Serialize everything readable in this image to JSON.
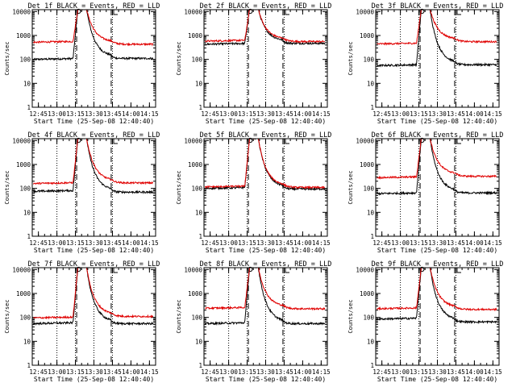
{
  "colors": {
    "events": "#000000",
    "lld": "#e00000",
    "axes": "#000000",
    "background": "#ffffff"
  },
  "chart_data": [
    {
      "type": "line",
      "title": "Det 1f BLACK = Events, RED = LLD",
      "xlabel": "Start Time (25-Sep-08 12:40:40)",
      "ylabel": "Counts/sec",
      "xlim": [
        "12:40",
        "14:20"
      ],
      "ylim": [
        1,
        12000
      ],
      "yscale": "log",
      "xticks": [
        "12:45",
        "13:00",
        "13:15",
        "13:30",
        "13:45",
        "14:00",
        "14:15"
      ],
      "yticks": [
        "1",
        "10",
        "100",
        "1000",
        "10000"
      ],
      "dotted_lines": [
        "13:00",
        "13:15",
        "13:30",
        "13:45"
      ],
      "dashed_lines": [
        "13:16",
        "13:44"
      ],
      "series": [
        {
          "name": "Events",
          "color": "#000000",
          "baseline_before": 100,
          "peak": 10000,
          "baseline_after": 110
        },
        {
          "name": "LLD",
          "color": "#e00000",
          "baseline_before": 520,
          "peak": 10000,
          "baseline_after": 430
        }
      ]
    },
    {
      "type": "line",
      "title": "Det 2f BLACK = Events, RED = LLD",
      "xlabel": "Start Time (25-Sep-08 12:40:40)",
      "ylabel": "Counts/sec",
      "xlim": [
        "12:40",
        "14:20"
      ],
      "ylim": [
        1,
        12000
      ],
      "yscale": "log",
      "xticks": [
        "12:45",
        "13:00",
        "13:15",
        "13:30",
        "13:45",
        "14:00",
        "14:15"
      ],
      "yticks": [
        "1",
        "10",
        "100",
        "1000",
        "10000"
      ],
      "dotted_lines": [
        "13:00",
        "13:15",
        "13:30",
        "13:45"
      ],
      "dashed_lines": [
        "13:16",
        "13:44"
      ],
      "series": [
        {
          "name": "Events",
          "color": "#000000",
          "baseline_before": 430,
          "peak": 10000,
          "baseline_after": 470
        },
        {
          "name": "LLD",
          "color": "#e00000",
          "baseline_before": 580,
          "peak": 10000,
          "baseline_after": 560
        }
      ]
    },
    {
      "type": "line",
      "title": "Det 3f BLACK = Events, RED = LLD",
      "xlabel": "Start Time (25-Sep-08 12:40:40)",
      "ylabel": "Counts/sec",
      "xlim": [
        "12:40",
        "14:20"
      ],
      "ylim": [
        1,
        12000
      ],
      "yscale": "log",
      "xticks": [
        "12:45",
        "13:00",
        "13:15",
        "13:30",
        "13:45",
        "14:00",
        "14:15"
      ],
      "yticks": [
        "1",
        "10",
        "100",
        "1000",
        "10000"
      ],
      "dotted_lines": [
        "13:00",
        "13:15",
        "13:30",
        "13:45"
      ],
      "dashed_lines": [
        "13:16",
        "13:44"
      ],
      "series": [
        {
          "name": "Events",
          "color": "#000000",
          "baseline_before": 55,
          "peak": 10000,
          "baseline_after": 60
        },
        {
          "name": "LLD",
          "color": "#e00000",
          "baseline_before": 440,
          "peak": 10000,
          "baseline_after": 550
        }
      ]
    },
    {
      "type": "line",
      "title": "Det 4f BLACK = Events, RED = LLD",
      "xlabel": "Start Time (25-Sep-08 12:40:40)",
      "ylabel": "Counts/sec",
      "xlim": [
        "12:40",
        "14:20"
      ],
      "ylim": [
        1,
        12000
      ],
      "yscale": "log",
      "xticks": [
        "12:45",
        "13:00",
        "13:15",
        "13:30",
        "13:45",
        "14:00",
        "14:15"
      ],
      "yticks": [
        "1",
        "10",
        "100",
        "1000",
        "10000"
      ],
      "dotted_lines": [
        "13:00",
        "13:15",
        "13:30",
        "13:45"
      ],
      "dashed_lines": [
        "13:16",
        "13:44"
      ],
      "series": [
        {
          "name": "Events",
          "color": "#000000",
          "baseline_before": 75,
          "peak": 10000,
          "baseline_after": 70
        },
        {
          "name": "LLD",
          "color": "#e00000",
          "baseline_before": 160,
          "peak": 10000,
          "baseline_after": 170
        }
      ]
    },
    {
      "type": "line",
      "title": "Det 5f BLACK = Events, RED = LLD",
      "xlabel": "Start Time (25-Sep-08 12:40:40)",
      "ylabel": "Counts/sec",
      "xlim": [
        "12:40",
        "14:20"
      ],
      "ylim": [
        1,
        12000
      ],
      "yscale": "log",
      "xticks": [
        "12:45",
        "13:00",
        "13:15",
        "13:30",
        "13:45",
        "14:00",
        "14:15"
      ],
      "yticks": [
        "1",
        "10",
        "100",
        "1000",
        "10000"
      ],
      "dotted_lines": [
        "13:00",
        "13:15",
        "13:30",
        "13:45"
      ],
      "dashed_lines": [
        "13:16",
        "13:44"
      ],
      "series": [
        {
          "name": "Events",
          "color": "#000000",
          "baseline_before": 100,
          "peak": 10000,
          "baseline_after": 95
        },
        {
          "name": "LLD",
          "color": "#e00000",
          "baseline_before": 115,
          "peak": 10000,
          "baseline_after": 110
        }
      ]
    },
    {
      "type": "line",
      "title": "Det 6f BLACK = Events, RED = LLD",
      "xlabel": "Start Time (25-Sep-08 12:40:40)",
      "ylabel": "Counts/sec",
      "xlim": [
        "12:40",
        "14:20"
      ],
      "ylim": [
        1,
        12000
      ],
      "yscale": "log",
      "xticks": [
        "12:45",
        "13:00",
        "13:15",
        "13:30",
        "13:45",
        "14:00",
        "14:15"
      ],
      "yticks": [
        "1",
        "10",
        "100",
        "1000",
        "10000"
      ],
      "dotted_lines": [
        "13:00",
        "13:15",
        "13:30",
        "13:45"
      ],
      "dashed_lines": [
        "13:16",
        "13:44"
      ],
      "series": [
        {
          "name": "Events",
          "color": "#000000",
          "baseline_before": 60,
          "peak": 10000,
          "baseline_after": 65
        },
        {
          "name": "LLD",
          "color": "#e00000",
          "baseline_before": 280,
          "peak": 10000,
          "baseline_after": 320
        }
      ]
    },
    {
      "type": "line",
      "title": "Det 7f BLACK = Events, RED = LLD",
      "xlabel": "Start Time (25-Sep-08 12:40:40)",
      "ylabel": "Counts/sec",
      "xlim": [
        "12:40",
        "14:20"
      ],
      "ylim": [
        1,
        12000
      ],
      "yscale": "log",
      "xticks": [
        "12:45",
        "13:00",
        "13:15",
        "13:30",
        "13:45",
        "14:00",
        "14:15"
      ],
      "yticks": [
        "1",
        "10",
        "100",
        "1000",
        "10000"
      ],
      "dotted_lines": [
        "13:00",
        "13:15",
        "13:30",
        "13:45"
      ],
      "dashed_lines": [
        "13:16",
        "13:44"
      ],
      "series": [
        {
          "name": "Events",
          "color": "#000000",
          "baseline_before": 55,
          "peak": 10000,
          "baseline_after": 55
        },
        {
          "name": "LLD",
          "color": "#e00000",
          "baseline_before": 95,
          "peak": 10000,
          "baseline_after": 110
        }
      ]
    },
    {
      "type": "line",
      "title": "Det 8f BLACK = Events, RED = LLD",
      "xlabel": "Start Time (25-Sep-08 12:40:40)",
      "ylabel": "Counts/sec",
      "xlim": [
        "12:40",
        "14:20"
      ],
      "ylim": [
        1,
        12000
      ],
      "yscale": "log",
      "xticks": [
        "12:45",
        "13:00",
        "13:15",
        "13:30",
        "13:45",
        "14:00",
        "14:15"
      ],
      "yticks": [
        "1",
        "10",
        "100",
        "1000",
        "10000"
      ],
      "dotted_lines": [
        "13:00",
        "13:15",
        "13:30",
        "13:45"
      ],
      "dashed_lines": [
        "13:16",
        "13:44"
      ],
      "series": [
        {
          "name": "Events",
          "color": "#000000",
          "baseline_before": 55,
          "peak": 10000,
          "baseline_after": 55
        },
        {
          "name": "LLD",
          "color": "#e00000",
          "baseline_before": 240,
          "peak": 10000,
          "baseline_after": 230
        }
      ]
    },
    {
      "type": "line",
      "title": "Det 9f BLACK = Events, RED = LLD",
      "xlabel": "Start Time (25-Sep-08 12:40:40)",
      "ylabel": "Counts/sec",
      "xlim": [
        "12:40",
        "14:20"
      ],
      "ylim": [
        1,
        12000
      ],
      "yscale": "log",
      "xticks": [
        "12:45",
        "13:00",
        "13:15",
        "13:30",
        "13:45",
        "14:00",
        "14:15"
      ],
      "yticks": [
        "1",
        "10",
        "100",
        "1000",
        "10000"
      ],
      "dotted_lines": [
        "13:00",
        "13:15",
        "13:30",
        "13:45"
      ],
      "dashed_lines": [
        "13:16",
        "13:44"
      ],
      "series": [
        {
          "name": "Events",
          "color": "#000000",
          "baseline_before": 85,
          "peak": 10000,
          "baseline_after": 65
        },
        {
          "name": "LLD",
          "color": "#e00000",
          "baseline_before": 230,
          "peak": 10000,
          "baseline_after": 215
        }
      ]
    }
  ]
}
